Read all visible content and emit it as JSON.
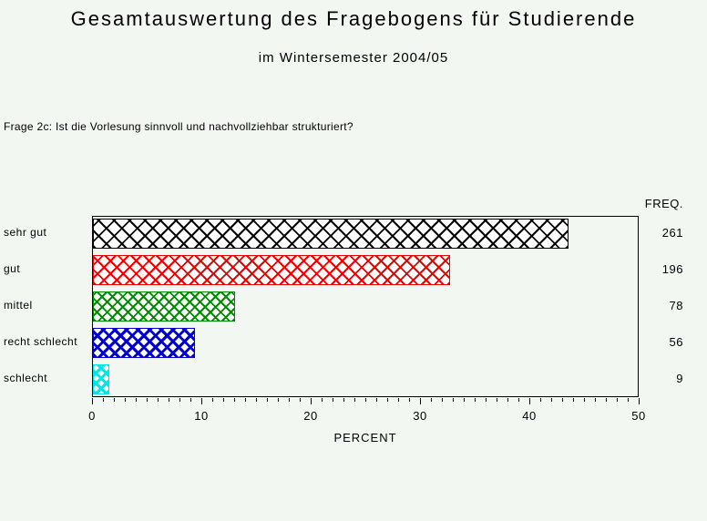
{
  "page": {
    "background_color": "#F2F7F2"
  },
  "header": {
    "title": "Gesamtauswertung des Fragebogens für Studierende",
    "subtitle": "im Wintersemester 2004/05",
    "question": "Frage 2c: Ist die Vorlesung sinnvoll und nachvollziehbar strukturiert?"
  },
  "chart_data": {
    "type": "bar",
    "orientation": "horizontal",
    "title": "Gesamtauswertung des Fragebogens für Studierende",
    "subtitle": "im Wintersemester 2004/05",
    "annotation": "Frage 2c: Ist die Vorlesung sinnvoll und nachvollziehbar strukturiert?",
    "categories": [
      "sehr gut",
      "gut",
      "mittel",
      "recht schlecht",
      "schlecht"
    ],
    "values": [
      43.5,
      32.67,
      13.0,
      9.33,
      1.5
    ],
    "frequencies": [
      261,
      196,
      78,
      56,
      9
    ],
    "freq_header": "FREQ.",
    "xlabel": "PERCENT",
    "ylabel": "",
    "xlim": [
      0,
      50
    ],
    "x_major_ticks": [
      0,
      10,
      20,
      30,
      40,
      50
    ],
    "x_minor_tick_interval": 1,
    "grid": false,
    "legend": "none",
    "bar_fill_style": "crosshatch",
    "bar_colors": [
      "#000000",
      "#EE0000",
      "#008A00",
      "#0000CD",
      "#00E5E5"
    ],
    "frame_color": "#000000",
    "text_color": "#000000"
  }
}
